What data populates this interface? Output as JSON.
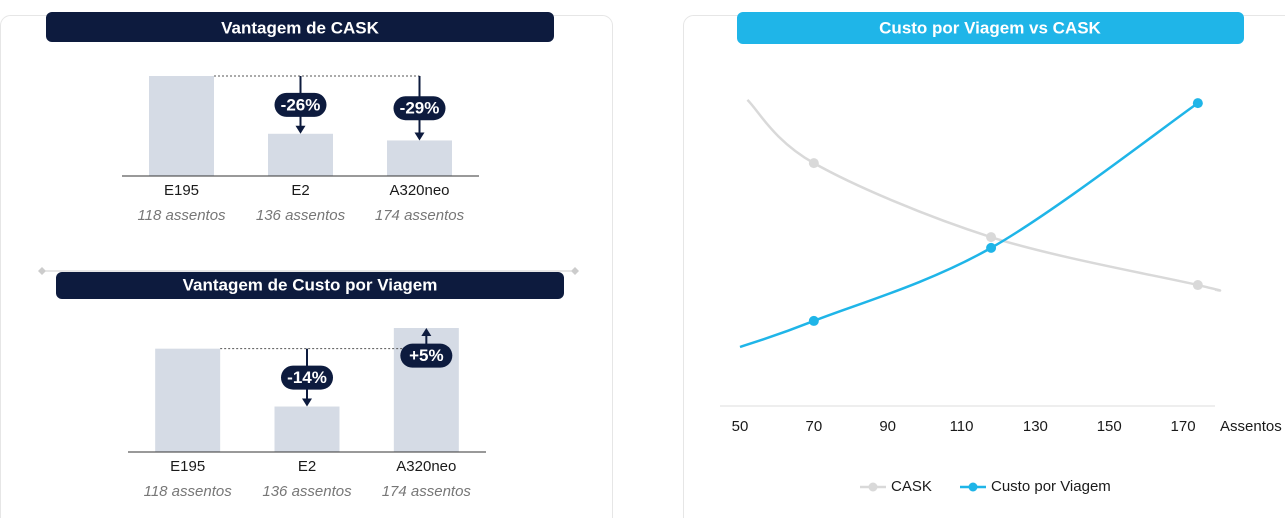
{
  "chart_data": [
    {
      "type": "bar",
      "title": "Vantagem de CASK",
      "categories": [
        "E195",
        "E2",
        "A320neo"
      ],
      "subcategories": [
        "118 assentos",
        "136 assentos",
        "174 assentos"
      ],
      "values": [
        100,
        74,
        71
      ],
      "color": "#d5dbe5",
      "ylim": [
        55,
        100
      ],
      "annotations": [
        null,
        {
          "value": -26,
          "label": "-26%"
        },
        {
          "value": -29,
          "label": "-29%"
        }
      ]
    },
    {
      "type": "bar",
      "title": "Vantagem de Custo por Viagem",
      "categories": [
        "E195",
        "E2",
        "A320neo"
      ],
      "subcategories": [
        "118 assentos",
        "136 assentos",
        "174 assentos"
      ],
      "values": [
        100,
        86,
        105
      ],
      "color": "#d5dbe5",
      "ylim": [
        75,
        105
      ],
      "annotations": [
        null,
        {
          "value": -14,
          "label": "-14%"
        },
        {
          "value": 5,
          "label": "+5%"
        }
      ]
    },
    {
      "type": "line",
      "title": "Custo por Viagem vs CASK",
      "x_label": "Assentos",
      "xlim": [
        50,
        180
      ],
      "xticks": [
        50,
        70,
        90,
        110,
        130,
        150,
        170
      ],
      "ylim": [
        0,
        100
      ],
      "series": [
        {
          "name": "CASK",
          "color": "#d9d9d9",
          "x": [
            52,
            70,
            118,
            174,
            179
          ],
          "values": [
            93.9,
            74.5,
            51.8,
            37.1,
            35.6
          ]
        },
        {
          "name": "Custo por Viagem",
          "color": "#1fb5e8",
          "x": [
            50,
            70,
            118,
            174
          ],
          "values": [
            18.1,
            26.1,
            48.5,
            92.9
          ]
        }
      ]
    }
  ]
}
